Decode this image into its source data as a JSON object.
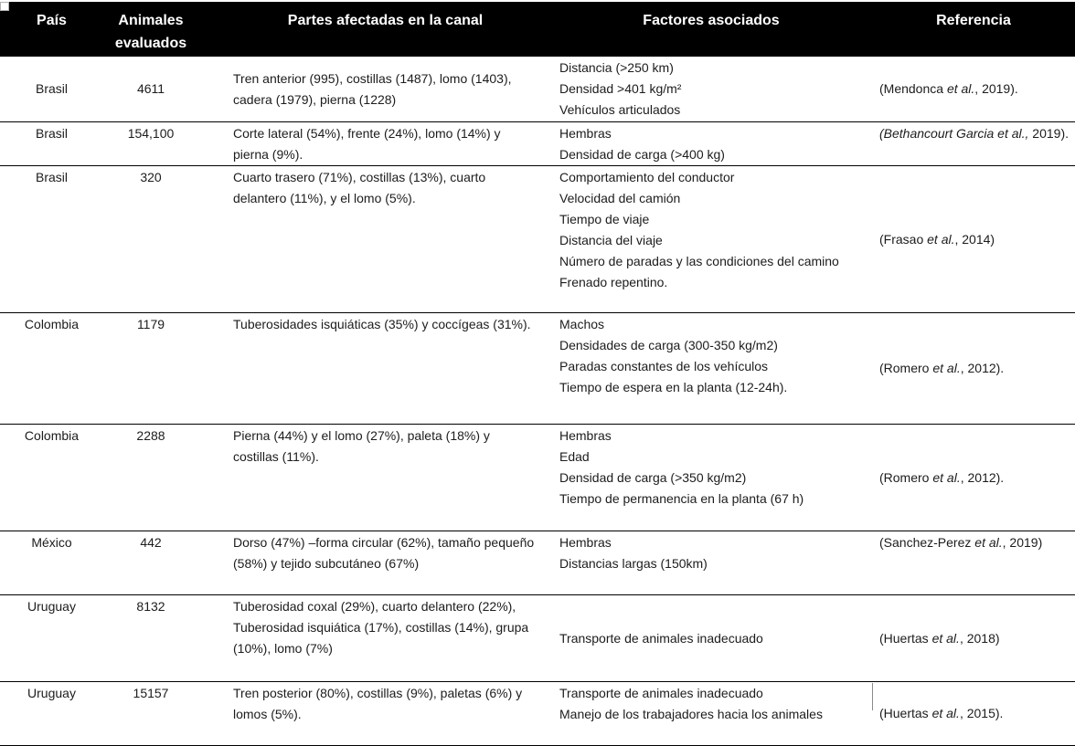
{
  "colors": {
    "header_bg": "#000000",
    "header_text": "#ffffff",
    "body_text": "#1c1c1c",
    "row_border": "#000000"
  },
  "table": {
    "columns": [
      {
        "key": "pais",
        "label": "País"
      },
      {
        "key": "animales",
        "label": "Animales evaluados"
      },
      {
        "key": "partes",
        "label": "Partes afectadas en la canal"
      },
      {
        "key": "factores",
        "label": "Factores asociados"
      },
      {
        "key": "referencia",
        "label": "Referencia"
      }
    ],
    "rows": [
      {
        "pais": "Brasil",
        "animales": "4611",
        "partes": "Tren anterior (995), costillas (1487), lomo (1403), cadera (1979), pierna (1228)",
        "factores": [
          "Distancia (>250 km)",
          "Densidad >401 kg/m²",
          "Vehículos articulados"
        ],
        "referencia": [
          {
            "t": "(Mendonca ",
            "i": false
          },
          {
            "t": "et al.",
            "i": true
          },
          {
            "t": ", 2019).",
            "i": false
          }
        ]
      },
      {
        "pais": "Brasil",
        "animales": "154,100",
        "partes": "Corte lateral (54%), frente (24%), lomo (14%) y pierna (9%).",
        "factores": [
          "Hembras",
          "Densidad de carga (>400 kg)"
        ],
        "referencia": [
          {
            "t": "(Bethancourt Garcia et al.,",
            "i": true
          },
          {
            "t": " 2019).",
            "i": false
          }
        ]
      },
      {
        "pais": "Brasil",
        "animales": "320",
        "partes": "Cuarto trasero (71%), costillas (13%), cuarto delantero (11%), y el lomo (5%).",
        "factores": [
          "Comportamiento del conductor",
          "Velocidad del camión",
          "Tiempo de viaje",
          "Distancia del viaje",
          "Número de paradas y las condiciones del camino",
          "Frenado repentino."
        ],
        "referencia": [
          {
            "t": "(Frasao ",
            "i": false
          },
          {
            "t": "et al.",
            "i": true
          },
          {
            "t": ", 2014)",
            "i": false
          }
        ]
      },
      {
        "pais": "Colombia",
        "animales": "1179",
        "partes": "Tuberosidades isquiáticas (35%) y coccígeas (31%).",
        "factores": [
          "Machos",
          "Densidades de carga (300-350 kg/m2)",
          "Paradas constantes de los vehículos",
          "Tiempo de espera en la planta (12-24h)."
        ],
        "referencia": [
          {
            "t": "(Romero ",
            "i": false
          },
          {
            "t": "et al.",
            "i": true
          },
          {
            "t": ", 2012).",
            "i": false
          }
        ]
      },
      {
        "pais": "Colombia",
        "animales": "2288",
        "partes": "Pierna (44%) y el lomo (27%), paleta (18%) y costillas (11%).",
        "factores": [
          "Hembras",
          "Edad",
          "Densidad de carga (>350 kg/m2)",
          "Tiempo de permanencia en la planta (67 h)"
        ],
        "referencia": [
          {
            "t": "(Romero ",
            "i": false
          },
          {
            "t": "et al.",
            "i": true
          },
          {
            "t": ", 2012).",
            "i": false
          }
        ]
      },
      {
        "pais": "México",
        "animales": "442",
        "partes": "Dorso (47%) –forma circular (62%), tamaño pequeño (58%) y tejido subcutáneo (67%)",
        "factores": [
          "Hembras",
          "Distancias largas (150km)"
        ],
        "referencia": [
          {
            "t": "(Sanchez-Perez ",
            "i": false
          },
          {
            "t": "et al.",
            "i": true
          },
          {
            "t": ", 2019)",
            "i": false
          }
        ]
      },
      {
        "pais": "Uruguay",
        "animales": "8132",
        "partes": "Tuberosidad coxal (29%), cuarto delantero (22%), Tuberosidad isquiática (17%), costillas (14%), grupa (10%), lomo (7%)",
        "factores": [
          "Transporte de animales inadecuado"
        ],
        "referencia": [
          {
            "t": "(Huertas ",
            "i": false
          },
          {
            "t": "et al.",
            "i": true
          },
          {
            "t": ", 2018)",
            "i": false
          }
        ]
      },
      {
        "pais": "Uruguay",
        "animales": "15157",
        "partes": "Tren posterior (80%), costillas (9%), paletas (6%) y lomos (5%).",
        "factores": [
          "Transporte de animales inadecuado",
          "Manejo de los trabajadores hacia los animales"
        ],
        "referencia": [
          {
            "t": "(Huertas ",
            "i": false
          },
          {
            "t": "et al.",
            "i": true
          },
          {
            "t": ", 2015).",
            "i": false
          }
        ]
      }
    ]
  }
}
